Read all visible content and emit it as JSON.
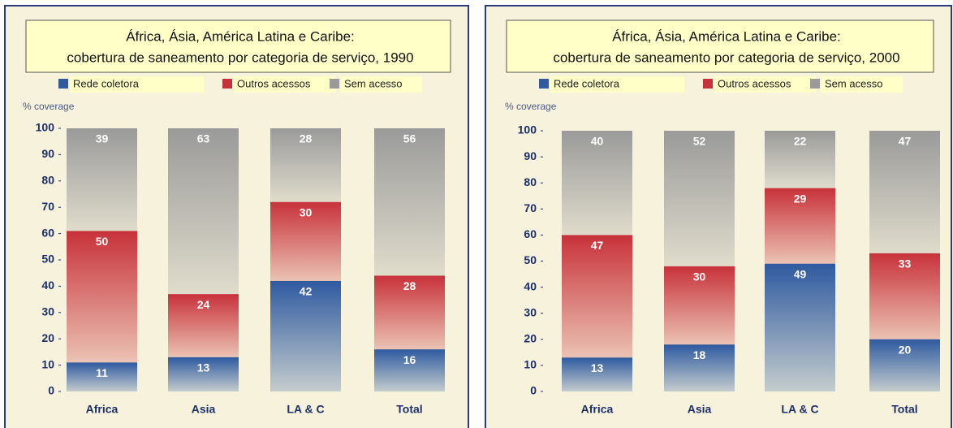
{
  "chart_data": [
    {
      "type": "stacked_bar",
      "title": [
        "África, Ásia, América Latina e Caribe:",
        "cobertura de saneamento por categoria de serviço, 1990"
      ],
      "y_label": "% coverage",
      "categories": [
        "Africa",
        "Asia",
        "LA & C",
        "Total"
      ],
      "series": [
        {
          "name": "Rede coletora",
          "color": "#2f5aa0",
          "values": [
            11,
            13,
            42,
            16
          ]
        },
        {
          "name": "Outros acessos",
          "color": "#c8323a",
          "values": [
            50,
            24,
            30,
            28
          ]
        },
        {
          "name": "Sem acesso",
          "color": "#9a9a9a",
          "values": [
            39,
            63,
            28,
            56
          ]
        }
      ],
      "ylim": [
        0,
        100
      ],
      "yticks": [
        0,
        10,
        20,
        30,
        40,
        50,
        60,
        70,
        80,
        90,
        100
      ]
    },
    {
      "type": "stacked_bar",
      "title": [
        "África, Ásia, América Latina e Caribe:",
        "cobertura de saneamento por categoria de serviço, 2000"
      ],
      "y_label": "% coverage",
      "categories": [
        "Africa",
        "Asia",
        "LA & C",
        "Total"
      ],
      "series": [
        {
          "name": "Rede coletora",
          "color": "#2f5aa0",
          "values": [
            13,
            18,
            49,
            20
          ]
        },
        {
          "name": "Outros acessos",
          "color": "#c8323a",
          "values": [
            47,
            30,
            29,
            33
          ]
        },
        {
          "name": "Sem acesso",
          "color": "#9a9a9a",
          "values": [
            40,
            52,
            22,
            47
          ]
        }
      ],
      "ylim": [
        0,
        100
      ],
      "yticks": [
        0,
        10,
        20,
        30,
        40,
        50,
        60,
        70,
        80,
        90,
        100
      ]
    }
  ]
}
